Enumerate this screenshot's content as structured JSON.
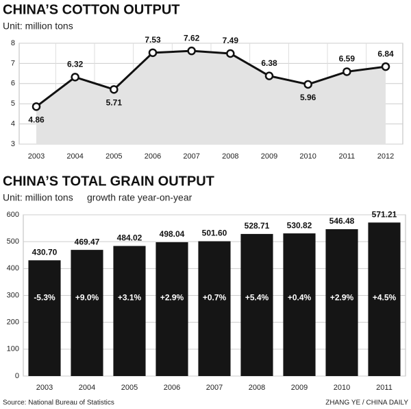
{
  "chart_data": [
    {
      "type": "line",
      "title": "CHINA’S COTTON OUTPUT",
      "subtitle": "Unit: million tons",
      "categories": [
        "2003",
        "2004",
        "2005",
        "2006",
        "2007",
        "2008",
        "2009",
        "2010",
        "2011",
        "2012"
      ],
      "values": [
        4.86,
        6.32,
        5.71,
        7.53,
        7.62,
        7.49,
        6.38,
        5.96,
        6.59,
        6.84
      ],
      "color": "#111111",
      "area_color": "#e3e3e3",
      "ylim": [
        3,
        8
      ],
      "yticks": [
        3,
        4,
        5,
        6,
        7,
        8
      ],
      "grid": true
    },
    {
      "type": "bar",
      "title": "CHINA’S TOTAL GRAIN OUTPUT",
      "subtitle": "Unit: million tons",
      "categories": [
        "2003",
        "2004",
        "2005",
        "2006",
        "2007",
        "2008",
        "2009",
        "2010",
        "2011"
      ],
      "values": [
        430.7,
        469.47,
        484.02,
        498.04,
        501.6,
        528.71,
        530.82,
        546.48,
        571.21
      ],
      "value_labels": [
        "430.70",
        "469.47",
        "484.02",
        "498.04",
        "501.60",
        "528.71",
        "530.82",
        "546.48",
        "571.21"
      ],
      "growth": {
        "name": "growth rate year-on-year",
        "values": [
          -5.3,
          9.0,
          3.1,
          2.9,
          0.7,
          5.4,
          0.4,
          2.9,
          4.5
        ],
        "value_labels": [
          "-5.3%",
          "+9.0%",
          "+3.1%",
          "+2.9%",
          "+0.7%",
          "+5.4%",
          "+0.4%",
          "+2.9%",
          "+4.5%"
        ]
      },
      "color": "#151515",
      "ylim": [
        0,
        600
      ],
      "yticks": [
        0,
        100,
        200,
        300,
        400,
        500,
        600
      ],
      "grid": true
    }
  ],
  "source": "Source: National Bureau of Statistics",
  "credit": "ZHANG YE / CHINA DAILY"
}
